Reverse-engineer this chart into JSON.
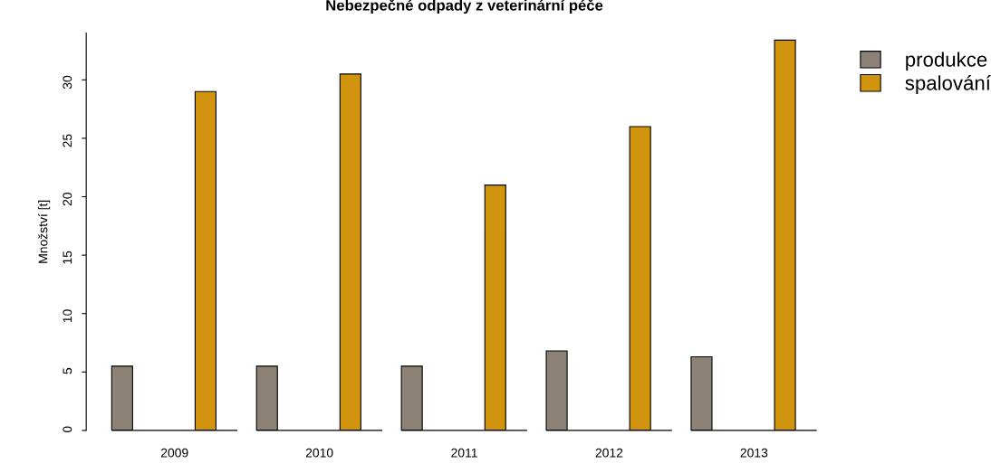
{
  "chart_data": {
    "type": "bar",
    "title": "Nebezpečné odpady z veterinární péče",
    "ylabel": "Množství [t]",
    "categories": [
      "2009",
      "2010",
      "2011",
      "2012",
      "2013"
    ],
    "series": [
      {
        "name": "produkce",
        "color": "#8c8276",
        "values": [
          5.5,
          5.5,
          5.5,
          6.8,
          6.3
        ]
      },
      {
        "name": "spalování",
        "color": "#d0940f",
        "values": [
          29,
          30.5,
          21,
          26,
          33.4
        ]
      }
    ],
    "ylim": [
      0,
      34
    ],
    "yticks": [
      0,
      5,
      10,
      15,
      20,
      25,
      30
    ],
    "grid": false,
    "legend": "top right"
  }
}
